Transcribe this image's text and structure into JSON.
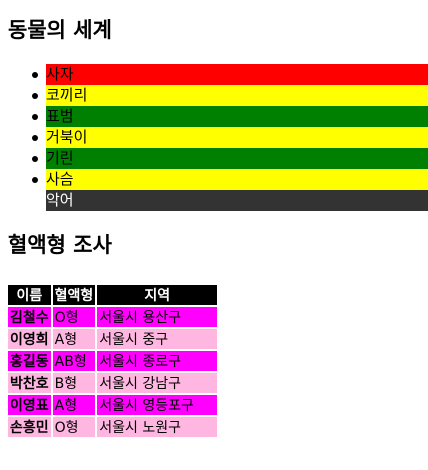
{
  "heading_animals": "동물의 세계",
  "animals": [
    {
      "label": "사자",
      "bg": "#ff0000",
      "color": "#000000"
    },
    {
      "label": "코끼리",
      "bg": "#ffff00",
      "color": "#000000"
    },
    {
      "label": "표범",
      "bg": "#008000",
      "color": "#000000"
    },
    {
      "label": "거북이",
      "bg": "#ffff00",
      "color": "#000000"
    },
    {
      "label": "기린",
      "bg": "#008000",
      "color": "#000000"
    },
    {
      "label": "사슴",
      "bg": "#ffff00",
      "color": "#000000"
    },
    {
      "label": "악어",
      "bg": "#333333",
      "color": "#ffffff"
    }
  ],
  "heading_blood": "혈액형 조사",
  "table": {
    "headers": [
      "이름",
      "혈액형",
      "지역"
    ],
    "rows": [
      [
        "김철수",
        "O형",
        "서울시 용산구"
      ],
      [
        "이영희",
        "A형",
        "서울시 중구"
      ],
      [
        "홍길동",
        "AB형",
        "서울시 종로구"
      ],
      [
        "박찬호",
        "B형",
        "서울시 강남구"
      ],
      [
        "이영표",
        "A형",
        "서울시 영등포구"
      ],
      [
        "손흥민",
        "O형",
        "서울시 노원구"
      ]
    ]
  },
  "colors": {
    "row_odd": "#ff00ff",
    "row_even": "#ffb6e1",
    "header_bg": "#000000"
  }
}
